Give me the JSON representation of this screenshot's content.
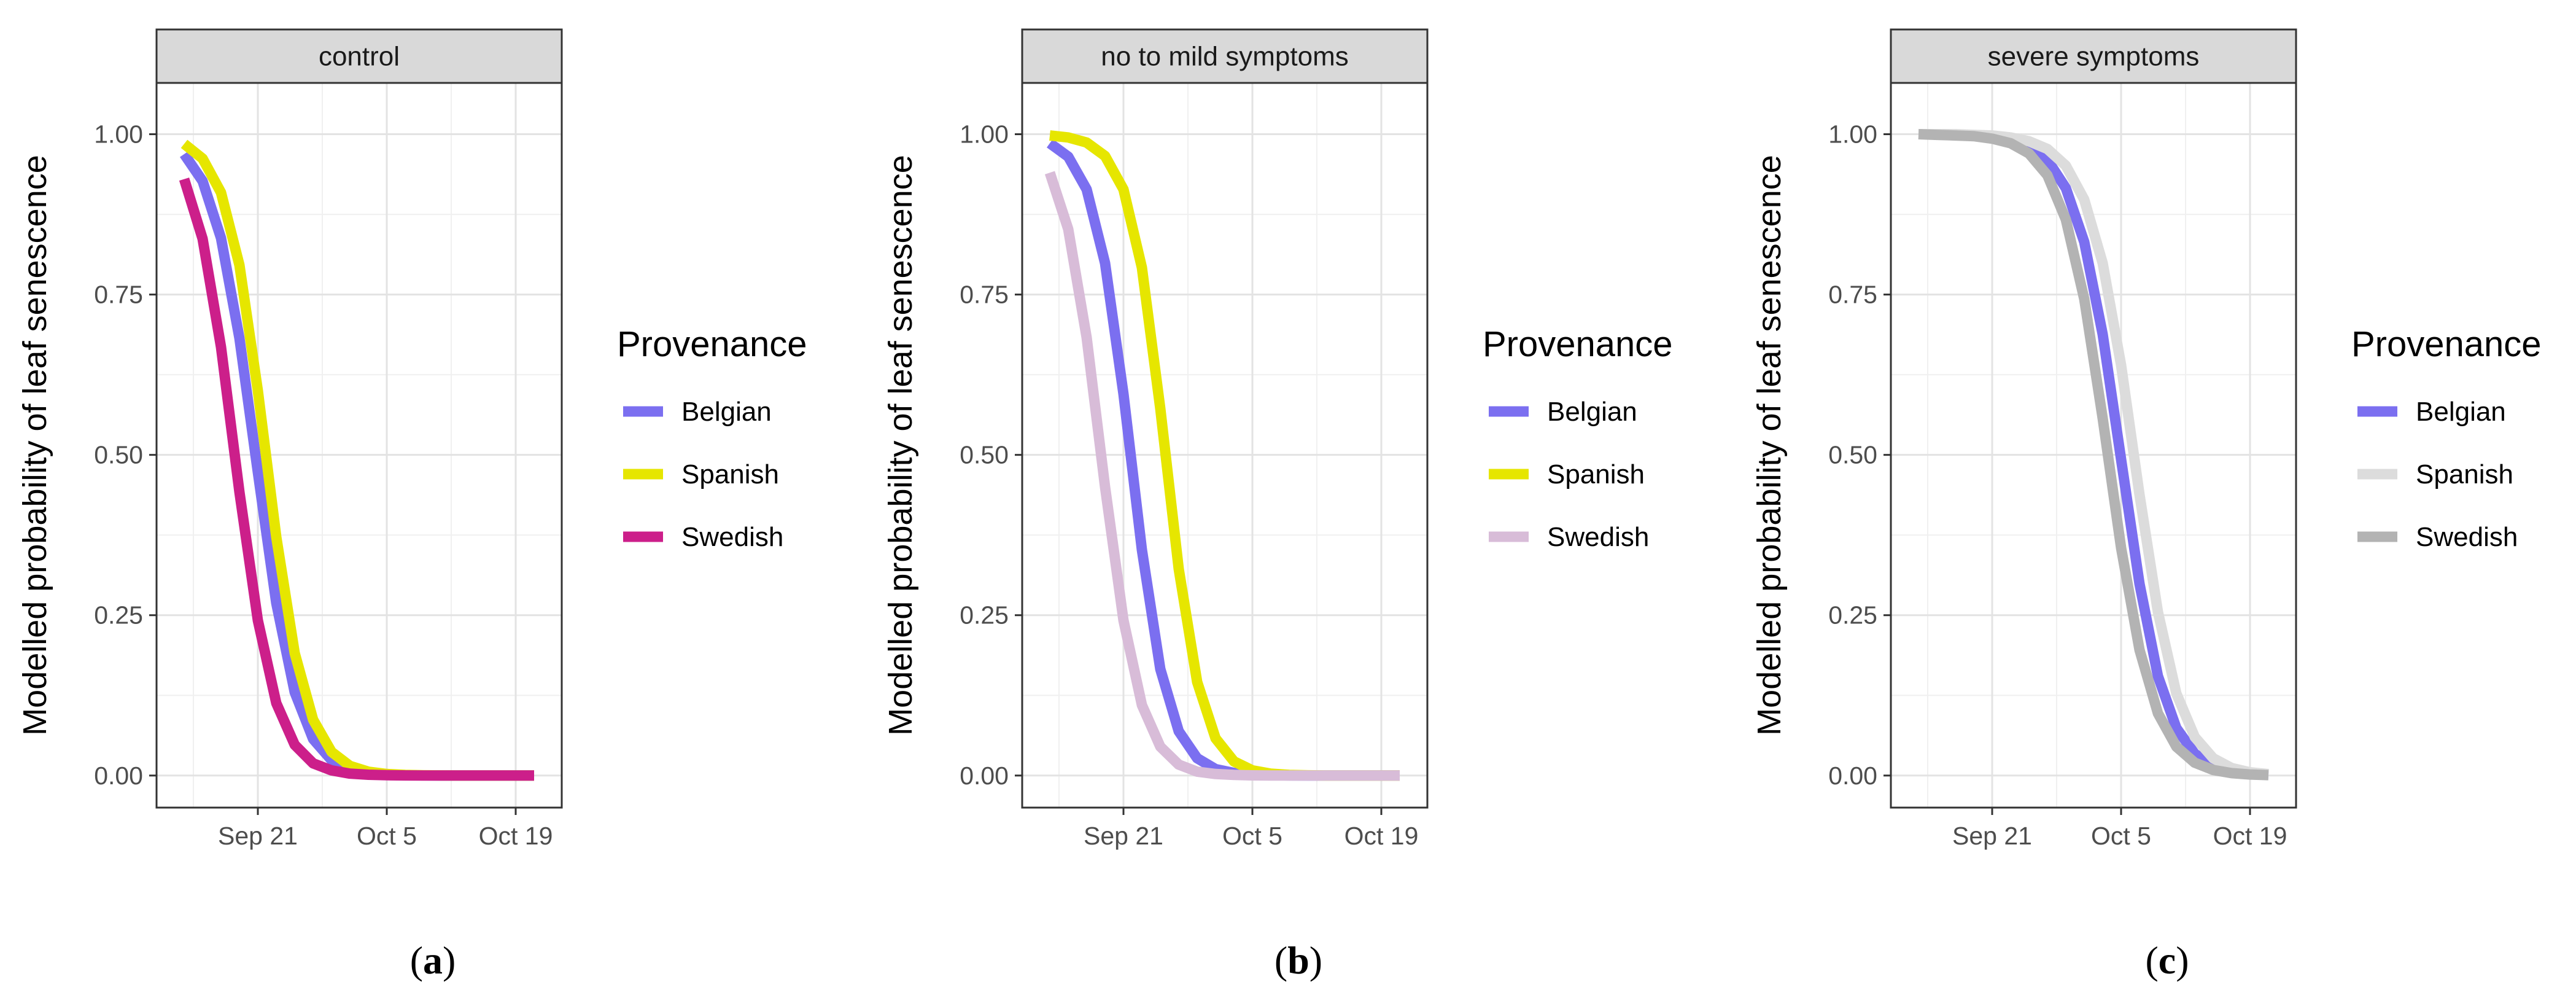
{
  "chart_data": [
    {
      "type": "line",
      "panel_caption": "(a)",
      "strip_title": "control",
      "ylabel": "Modelled probability of leaf senescence",
      "xlabel": "",
      "x_unit": "days since Sep 21",
      "xlim": [
        -11,
        33
      ],
      "ylim": [
        -0.05,
        1.08
      ],
      "x_ticks": [
        {
          "label": "Sep 21",
          "value": 0
        },
        {
          "label": "Oct 5",
          "value": 14
        },
        {
          "label": "Oct 19",
          "value": 28
        }
      ],
      "y_ticks": [
        {
          "label": "0.00",
          "value": 0
        },
        {
          "label": "0.25",
          "value": 0.25
        },
        {
          "label": "0.50",
          "value": 0.5
        },
        {
          "label": "0.75",
          "value": 0.75
        },
        {
          "label": "1.00",
          "value": 1.0
        }
      ],
      "grid": true,
      "legend_title": "Provenance",
      "legend_position": "right",
      "series": [
        {
          "name": "Belgian",
          "color": "#7b6ff0",
          "x": [
            -8,
            -6,
            -4,
            -2,
            0,
            2,
            4,
            6,
            8,
            10,
            12,
            14,
            16,
            18,
            20,
            22,
            24,
            26,
            28,
            30
          ],
          "values": [
            0.969,
            0.927,
            0.838,
            0.682,
            0.473,
            0.269,
            0.13,
            0.057,
            0.024,
            0.01,
            0.004,
            0.0016,
            0.0006,
            0.0003,
            0.0001,
            0.0,
            0.0,
            0.0,
            0.0,
            0.0
          ]
        },
        {
          "name": "Spanish",
          "color": "#e6e600",
          "x": [
            -8,
            -6,
            -4,
            -2,
            0,
            2,
            4,
            6,
            8,
            10,
            12,
            14,
            16,
            18,
            20,
            22,
            24,
            26,
            28,
            30
          ],
          "values": [
            0.985,
            0.962,
            0.909,
            0.796,
            0.6,
            0.372,
            0.191,
            0.087,
            0.037,
            0.015,
            0.006,
            0.0024,
            0.001,
            0.0004,
            0.0002,
            0.0001,
            0.0,
            0.0,
            0.0,
            0.0
          ]
        },
        {
          "name": "Swedish",
          "color": "#cc1f8a",
          "x": [
            -8,
            -6,
            -4,
            -2,
            0,
            2,
            4,
            6,
            8,
            10,
            12,
            14,
            16,
            18,
            20,
            22,
            24,
            26,
            28,
            30
          ],
          "values": [
            0.93,
            0.837,
            0.668,
            0.442,
            0.242,
            0.113,
            0.048,
            0.019,
            0.008,
            0.003,
            0.0012,
            0.0005,
            0.0002,
            0.0001,
            0.0,
            0.0,
            0.0,
            0.0,
            0.0,
            0.0
          ]
        }
      ]
    },
    {
      "type": "line",
      "panel_caption": "(b)",
      "strip_title": "no to mild symptoms",
      "ylabel": "Modelled probability of leaf senescence",
      "xlabel": "",
      "x_unit": "days since Sep 21",
      "xlim": [
        -11,
        33
      ],
      "ylim": [
        -0.05,
        1.08
      ],
      "x_ticks": [
        {
          "label": "Sep 21",
          "value": 0
        },
        {
          "label": "Oct 5",
          "value": 14
        },
        {
          "label": "Oct 19",
          "value": 28
        }
      ],
      "y_ticks": [
        {
          "label": "0.00",
          "value": 0
        },
        {
          "label": "0.25",
          "value": 0.25
        },
        {
          "label": "0.50",
          "value": 0.5
        },
        {
          "label": "0.75",
          "value": 0.75
        },
        {
          "label": "1.00",
          "value": 1.0
        }
      ],
      "grid": true,
      "legend_title": "Provenance",
      "legend_position": "right",
      "series": [
        {
          "name": "Belgian",
          "color": "#7b6ff0",
          "x": [
            -8,
            -6,
            -4,
            -2,
            0,
            2,
            4,
            6,
            8,
            10,
            12,
            14,
            16,
            18,
            20,
            22,
            24,
            26,
            28,
            30
          ],
          "values": [
            0.986,
            0.965,
            0.914,
            0.799,
            0.595,
            0.352,
            0.166,
            0.069,
            0.027,
            0.01,
            0.004,
            0.0014,
            0.0005,
            0.0002,
            0.0001,
            0.0,
            0.0,
            0.0,
            0.0,
            0.0
          ]
        },
        {
          "name": "Spanish",
          "color": "#e6e600",
          "x": [
            -8,
            -6,
            -4,
            -2,
            0,
            2,
            4,
            6,
            8,
            10,
            12,
            14,
            16,
            18,
            20,
            22,
            24,
            26,
            28,
            30
          ],
          "values": [
            0.998,
            0.995,
            0.987,
            0.966,
            0.914,
            0.792,
            0.572,
            0.322,
            0.146,
            0.058,
            0.022,
            0.008,
            0.003,
            0.001,
            0.0004,
            0.0001,
            0.0,
            0.0,
            0.0,
            0.0
          ]
        },
        {
          "name": "Swedish",
          "color": "#d8bcd8",
          "x": [
            -8,
            -6,
            -4,
            -2,
            0,
            2,
            4,
            6,
            8,
            10,
            12,
            14,
            16,
            18,
            20,
            22,
            24,
            26,
            28,
            30
          ],
          "values": [
            0.94,
            0.852,
            0.683,
            0.45,
            0.242,
            0.11,
            0.045,
            0.017,
            0.006,
            0.0024,
            0.0009,
            0.0003,
            0.0001,
            0.0,
            0.0,
            0.0,
            0.0,
            0.0,
            0.0,
            0.0
          ]
        }
      ]
    },
    {
      "type": "line",
      "panel_caption": "(c)",
      "strip_title": "severe symptoms",
      "ylabel": "Modelled probability of leaf senescence",
      "xlabel": "",
      "x_unit": "days since Sep 21",
      "xlim": [
        -11,
        33
      ],
      "ylim": [
        -0.05,
        1.08
      ],
      "x_ticks": [
        {
          "label": "Sep 21",
          "value": 0
        },
        {
          "label": "Oct 5",
          "value": 14
        },
        {
          "label": "Oct 19",
          "value": 28
        }
      ],
      "y_ticks": [
        {
          "label": "0.00",
          "value": 0
        },
        {
          "label": "0.25",
          "value": 0.25
        },
        {
          "label": "0.50",
          "value": 0.5
        },
        {
          "label": "0.75",
          "value": 0.75
        },
        {
          "label": "1.00",
          "value": 1.0
        }
      ],
      "grid": true,
      "legend_title": "Provenance",
      "legend_position": "right",
      "series": [
        {
          "name": "Belgian",
          "color": "#7b6ff0",
          "x": [
            -8,
            -6,
            -4,
            -2,
            0,
            2,
            4,
            6,
            8,
            10,
            12,
            14,
            16,
            18,
            20,
            22,
            24,
            26,
            28,
            30
          ],
          "values": [
            1.0,
            1.0,
            0.999,
            0.998,
            0.996,
            0.991,
            0.981,
            0.96,
            0.916,
            0.832,
            0.688,
            0.493,
            0.299,
            0.155,
            0.074,
            0.034,
            0.015,
            0.0065,
            0.0028,
            0.0012
          ]
        },
        {
          "name": "Spanish",
          "color": "#dcdcdc",
          "x": [
            -8,
            -6,
            -4,
            -2,
            0,
            2,
            4,
            6,
            8,
            10,
            12,
            14,
            16,
            18,
            20,
            22,
            24,
            26,
            28,
            30
          ],
          "values": [
            1.0,
            1.0,
            1.0,
            0.999,
            0.998,
            0.995,
            0.989,
            0.977,
            0.951,
            0.898,
            0.799,
            0.64,
            0.438,
            0.255,
            0.128,
            0.06,
            0.027,
            0.0118,
            0.0051,
            0.0022
          ]
        },
        {
          "name": "Swedish",
          "color": "#b3b3b3",
          "x": [
            -8,
            -6,
            -4,
            -2,
            0,
            2,
            4,
            6,
            8,
            10,
            12,
            14,
            16,
            18,
            20,
            22,
            24,
            26,
            28,
            30
          ],
          "values": [
            1.0,
            0.999,
            0.998,
            0.997,
            0.993,
            0.986,
            0.97,
            0.936,
            0.867,
            0.743,
            0.557,
            0.355,
            0.196,
            0.097,
            0.045,
            0.02,
            0.0087,
            0.0037,
            0.0016,
            0.0007
          ]
        }
      ]
    }
  ]
}
